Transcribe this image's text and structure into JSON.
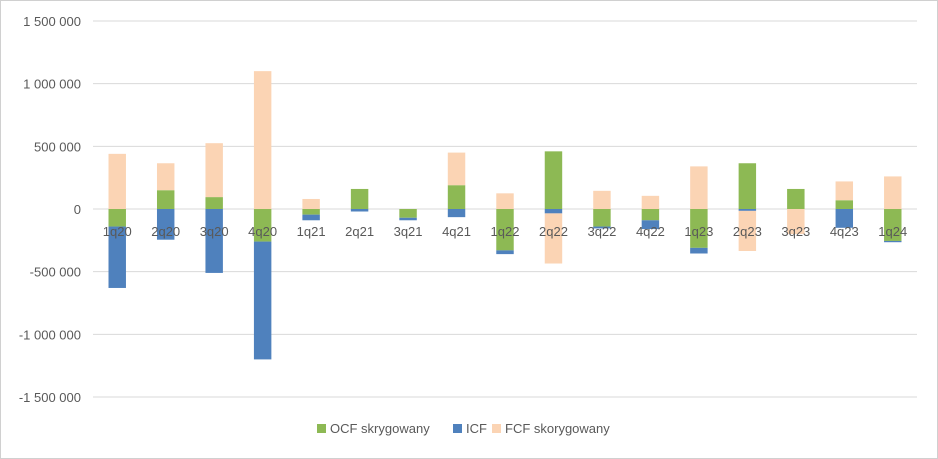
{
  "chart_data": {
    "type": "bar",
    "stacking": "stacked",
    "title": "",
    "xlabel": "",
    "ylabel": "",
    "ylim": [
      -1500000,
      1500000
    ],
    "y_ticks": [
      1500000,
      1000000,
      500000,
      0,
      -500000,
      -1000000,
      -1500000
    ],
    "y_tick_labels": [
      "1 500 000",
      "1 000 000",
      "500 000",
      "0",
      "-500 000",
      "-1 000 000",
      "-1 500 000"
    ],
    "grid": true,
    "legend_position": "bottom",
    "categories": [
      "1q20",
      "2q20",
      "3q20",
      "4q20",
      "1q21",
      "2q21",
      "3q21",
      "4q21",
      "1q22",
      "2q22",
      "3q22",
      "4q22",
      "1q23",
      "2q23",
      "3q23",
      "4q23",
      "1q24"
    ],
    "series": [
      {
        "name": "OCF skrygowany",
        "color": "#8db954",
        "values": [
          -140000,
          150000,
          95000,
          -260000,
          -45000,
          160000,
          -70000,
          190000,
          -330000,
          460000,
          -140000,
          -90000,
          -310000,
          365000,
          160000,
          70000,
          -255000
        ]
      },
      {
        "name": "ICF",
        "color": "#4f81bd",
        "values": [
          -490000,
          -245000,
          -510000,
          -940000,
          -45000,
          -20000,
          -20000,
          -65000,
          -30000,
          -35000,
          -15000,
          -70000,
          -45000,
          -15000,
          0,
          -150000,
          -10000
        ]
      },
      {
        "name": "FCF skorygowany",
        "color": "#fbd4b4",
        "values": [
          440000,
          215000,
          430000,
          1100000,
          80000,
          0,
          0,
          260000,
          125000,
          -400000,
          145000,
          105000,
          340000,
          -320000,
          -200000,
          150000,
          260000
        ]
      }
    ]
  }
}
